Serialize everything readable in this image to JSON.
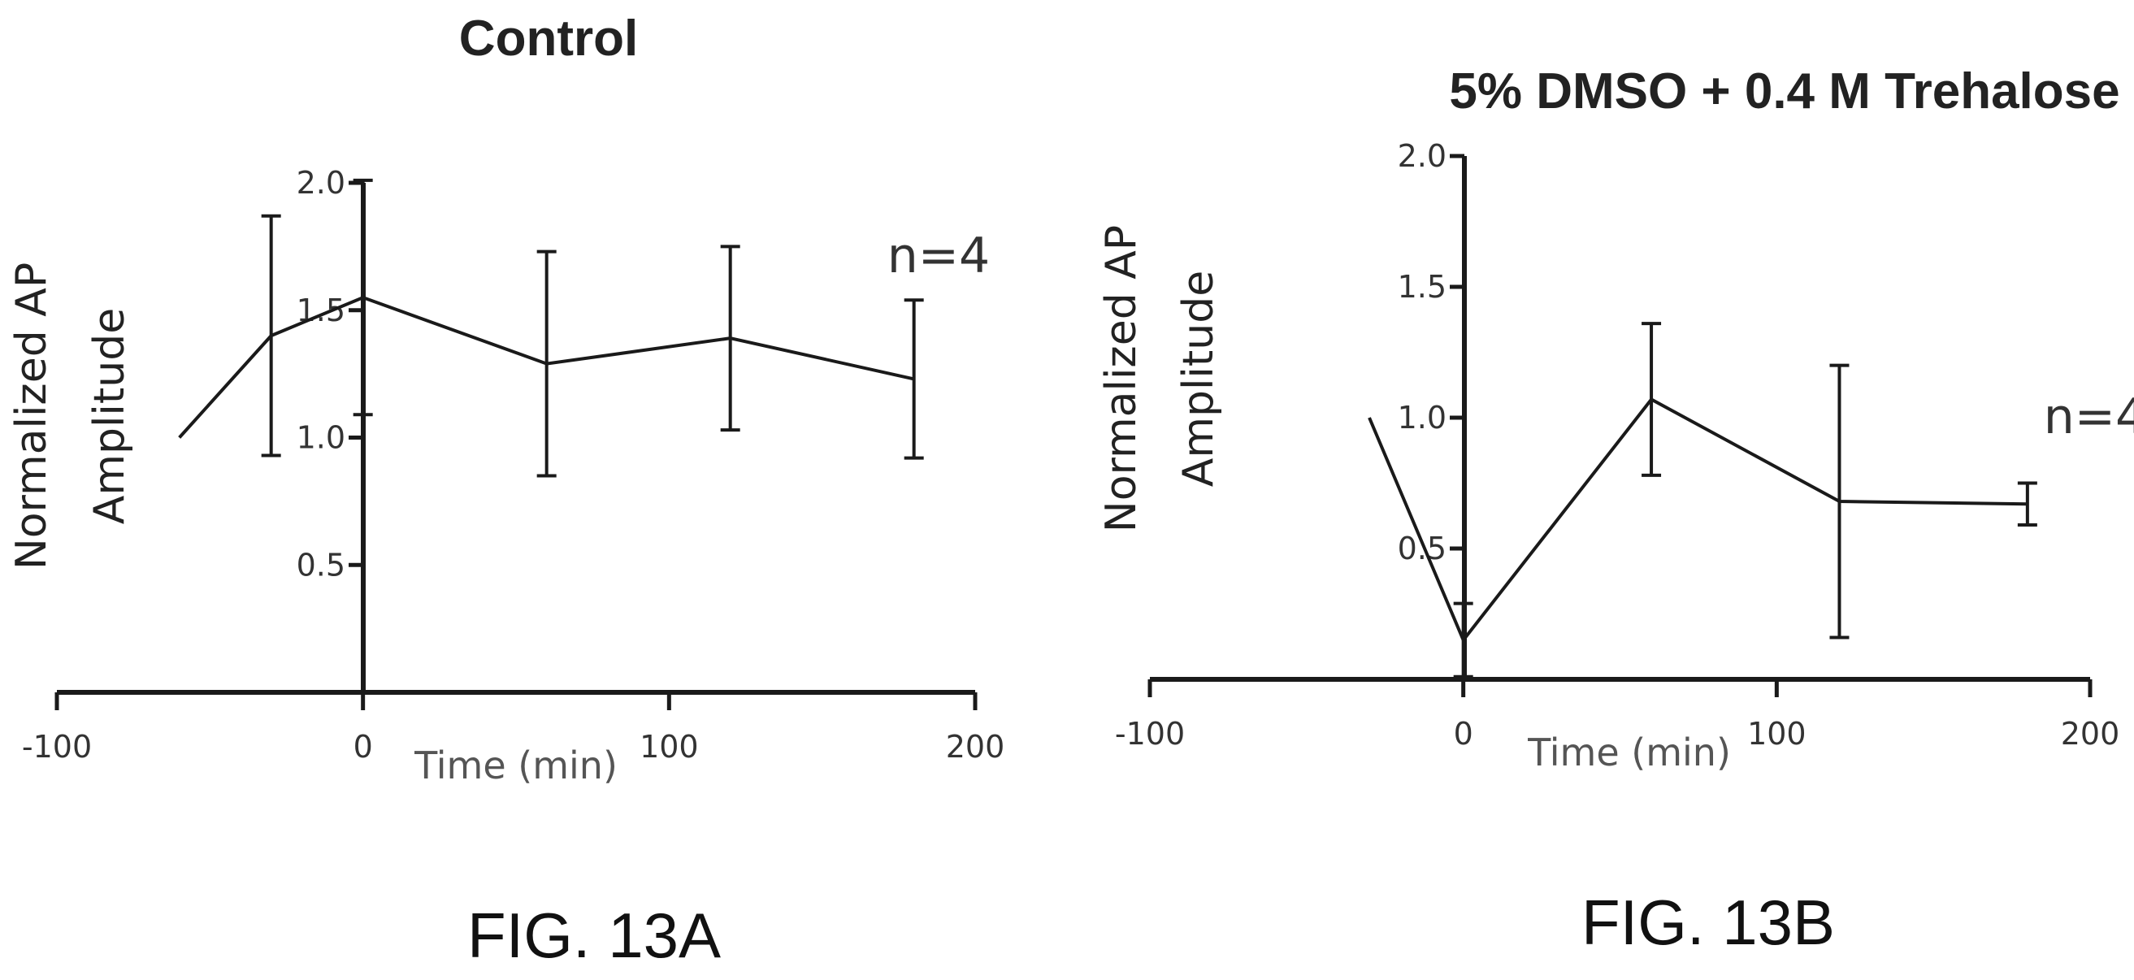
{
  "chart_data": [
    {
      "type": "line",
      "title": "Control",
      "ylabel_line1": "Normalized AP",
      "ylabel_line2": "Amplitude",
      "xlabel": "Time (min)",
      "annotation": "n=4",
      "figure_label": "FIG. 13A",
      "xlim": [
        -100,
        200
      ],
      "ylim": [
        0,
        2.0
      ],
      "x_ticks": [
        -100,
        0,
        100,
        200
      ],
      "x_tick_labels": [
        "-100",
        "0",
        "100",
        "200"
      ],
      "y_ticks": [
        0.5,
        1.0,
        1.5,
        2.0
      ],
      "y_tick_labels": [
        "0.5",
        "1.0",
        "1.5",
        "2.0"
      ],
      "grid": false,
      "series": [
        {
          "x": [
            -60,
            -30,
            0,
            60,
            120,
            180
          ],
          "y": [
            1.0,
            1.4,
            1.55,
            1.29,
            1.39,
            1.23
          ],
          "error": [
            null,
            0.47,
            0.46,
            0.44,
            0.36,
            0.31
          ]
        }
      ]
    },
    {
      "type": "line",
      "title": "5% DMSO + 0.4 M Trehalose",
      "ylabel_line1": "Normalized AP",
      "ylabel_line2": "Amplitude",
      "xlabel": "Time (min)",
      "annotation": "n=4",
      "figure_label": "FIG. 13B",
      "xlim": [
        -100,
        200
      ],
      "ylim": [
        0,
        2.0
      ],
      "x_ticks": [
        -100,
        0,
        100,
        200
      ],
      "x_tick_labels": [
        "-100",
        "0",
        "100",
        "200"
      ],
      "y_ticks": [
        0.5,
        1.0,
        1.5,
        2.0
      ],
      "y_tick_labels": [
        "0.5",
        "1.0",
        "1.5",
        "2.0"
      ],
      "grid": false,
      "series": [
        {
          "x": [
            -30,
            0,
            60,
            120,
            180
          ],
          "y": [
            1.0,
            0.15,
            1.07,
            0.68,
            0.67
          ],
          "error": [
            null,
            0.14,
            0.29,
            0.52,
            0.08
          ]
        }
      ]
    }
  ]
}
